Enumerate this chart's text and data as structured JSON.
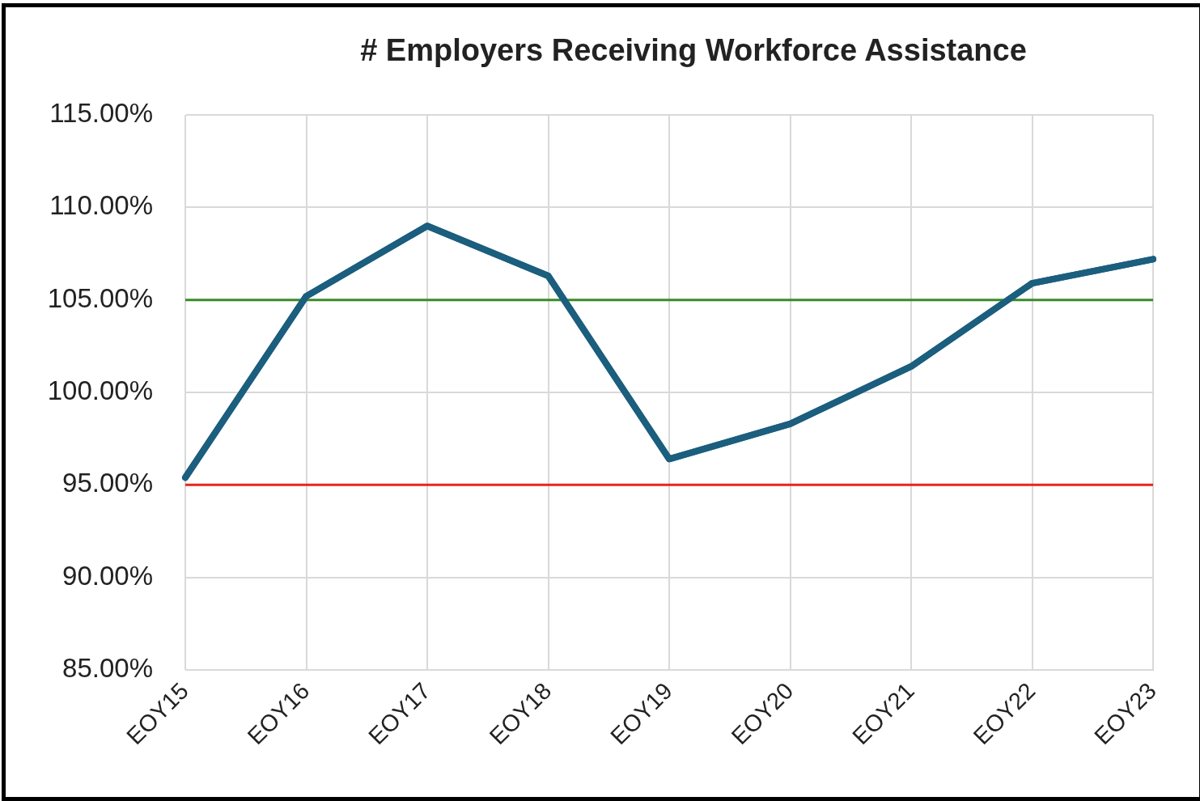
{
  "chart_data": {
    "type": "line",
    "title": "# Employers Receiving Workforce Assistance",
    "categories": [
      "EOY15",
      "EOY16",
      "EOY17",
      "EOY18",
      "EOY19",
      "EOY20",
      "EOY21",
      "EOY22",
      "EOY23"
    ],
    "series": [
      {
        "color": "#1b5e7e",
        "values": [
          95.4,
          105.2,
          109.0,
          106.3,
          96.4,
          98.3,
          101.4,
          105.9,
          107.2
        ]
      }
    ],
    "ylim": [
      85,
      115
    ],
    "yticks": [
      {
        "value": 85,
        "label": "85.00%"
      },
      {
        "value": 90,
        "label": "90.00%"
      },
      {
        "value": 95,
        "label": "95.00%"
      },
      {
        "value": 100,
        "label": "100.00%"
      },
      {
        "value": 105,
        "label": "105.00%"
      },
      {
        "value": 110,
        "label": "110.00%"
      },
      {
        "value": 115,
        "label": "115.00%"
      }
    ],
    "ref_lines": [
      {
        "axis": "y",
        "value": 105,
        "color": "#3a8a2a"
      },
      {
        "axis": "y",
        "value": 95,
        "color": "#e8241c"
      }
    ],
    "grid": true,
    "legend": false,
    "marker": "none",
    "line_style": "solid"
  }
}
